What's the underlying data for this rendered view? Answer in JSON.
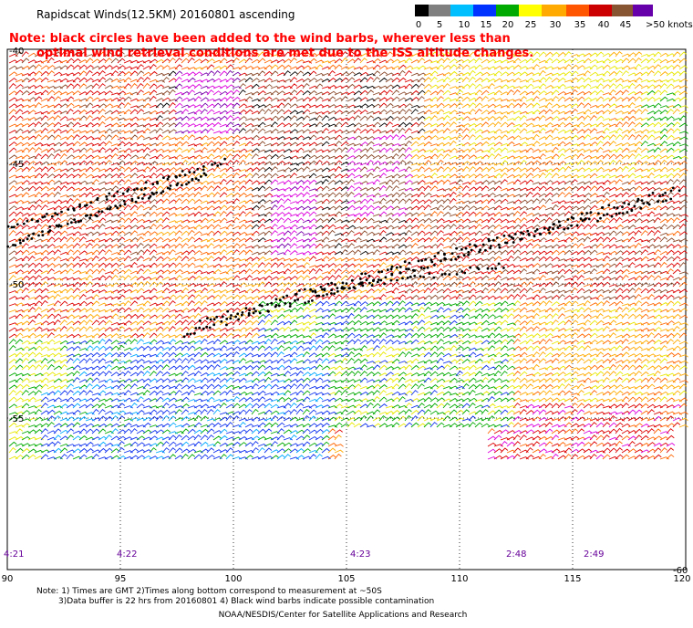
{
  "header": {
    "title": "Rapidscat Winds(12.5KM) 20160801 ascending",
    "note_line1": "Note: black circles have been added to the wind barbs, wherever less than",
    "note_line2": "optimal wind retrieval conditions are met due to the ISS altitude changes."
  },
  "colorbar": {
    "labels": [
      "0",
      "5",
      "10",
      "15",
      "20",
      "25",
      "30",
      "35",
      "40",
      "45",
      ">50 knots"
    ],
    "colors": [
      "#000000",
      "#7f7f7f",
      "#00bfff",
      "#0033ff",
      "#00aa00",
      "#ffff00",
      "#ffaa00",
      "#ff5500",
      "#cc0000",
      "#885533",
      "#ff00ff",
      "#6600aa"
    ]
  },
  "map": {
    "lon_labels": [
      "90",
      "95",
      "100",
      "105",
      "110",
      "115",
      "120"
    ],
    "lat_labels": [
      "-40",
      "-45",
      "-50",
      "-55",
      "-60"
    ],
    "time_labels": [
      "4:21",
      "4:22",
      "4:23",
      "2:48",
      "2:49"
    ]
  },
  "footer": {
    "line1": "Note: 1) Times are GMT 2)Times along bottom correspond to measurement at ~50S",
    "line2": "3)Data buffer is 22 hrs from 20160801 4) Black wind barbs indicate possible contamination",
    "line3": "NOAA/NESDIS/Center for Satellite Applications and Research"
  }
}
